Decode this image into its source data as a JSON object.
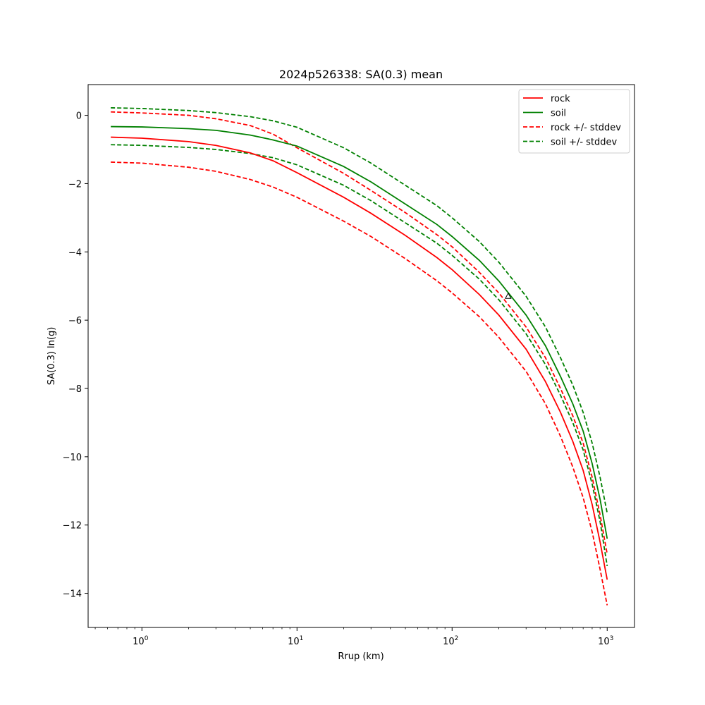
{
  "chart_data": {
    "type": "line",
    "title": "2024p526338: SA(0.3) mean",
    "xlabel": "Rrup (km)",
    "ylabel": "SA(0.3) ln(g)",
    "xscale": "log",
    "xlim": [
      0.45,
      1500
    ],
    "ylim": [
      -15,
      0.9
    ],
    "grid": false,
    "legend_position": "top-right",
    "x_ticks": [
      {
        "base": "10",
        "exp": "0",
        "value": 1
      },
      {
        "base": "10",
        "exp": "1",
        "value": 10
      },
      {
        "base": "10",
        "exp": "2",
        "value": 100
      },
      {
        "base": "10",
        "exp": "3",
        "value": 1000
      }
    ],
    "y_ticks": [
      {
        "label": "0",
        "value": 0
      },
      {
        "label": "−2",
        "value": -2
      },
      {
        "label": "−4",
        "value": -4
      },
      {
        "label": "−6",
        "value": -6
      },
      {
        "label": "−8",
        "value": -8
      },
      {
        "label": "−10",
        "value": -10
      },
      {
        "label": "−12",
        "value": -12
      },
      {
        "label": "−14",
        "value": -14
      }
    ],
    "x": [
      0.63,
      1,
      2,
      3,
      5,
      7,
      10,
      20,
      30,
      50,
      80,
      100,
      150,
      200,
      300,
      400,
      500,
      600,
      700,
      800,
      900,
      1000
    ],
    "series": [
      {
        "name": "soil +/- stddev",
        "color": "#008000",
        "dash": true,
        "values": [
          0.22,
          0.2,
          0.14,
          0.08,
          -0.04,
          -0.16,
          -0.35,
          -0.95,
          -1.4,
          -2.05,
          -2.65,
          -3.0,
          -3.7,
          -4.3,
          -5.3,
          -6.2,
          -7.1,
          -7.9,
          -8.7,
          -9.6,
          -10.6,
          -11.65
        ]
      },
      {
        "name": "soil +/- stddev",
        "color": "#008000",
        "dash": true,
        "values": [
          -0.86,
          -0.88,
          -0.94,
          -1.0,
          -1.12,
          -1.24,
          -1.45,
          -2.05,
          -2.5,
          -3.15,
          -3.75,
          -4.1,
          -4.8,
          -5.4,
          -6.4,
          -7.3,
          -8.2,
          -9.0,
          -9.8,
          -10.8,
          -11.9,
          -13.2
        ]
      },
      {
        "name": "rock +/- stddev",
        "color": "#ff0000",
        "dash": true,
        "values": [
          0.1,
          0.07,
          0.0,
          -0.1,
          -0.3,
          -0.55,
          -0.95,
          -1.7,
          -2.2,
          -2.85,
          -3.5,
          -3.85,
          -4.6,
          -5.2,
          -6.2,
          -7.1,
          -8.0,
          -8.8,
          -9.6,
          -10.6,
          -11.7,
          -12.85
        ]
      },
      {
        "name": "rock +/- stddev",
        "color": "#ff0000",
        "dash": true,
        "values": [
          -1.37,
          -1.4,
          -1.52,
          -1.64,
          -1.88,
          -2.1,
          -2.4,
          -3.1,
          -3.55,
          -4.2,
          -4.85,
          -5.2,
          -5.9,
          -6.5,
          -7.5,
          -8.45,
          -9.4,
          -10.3,
          -11.2,
          -12.2,
          -13.3,
          -14.35
        ]
      },
      {
        "name": "soil",
        "color": "#008000",
        "dash": false,
        "values": [
          -0.33,
          -0.34,
          -0.39,
          -0.44,
          -0.58,
          -0.72,
          -0.9,
          -1.5,
          -1.95,
          -2.6,
          -3.2,
          -3.55,
          -4.25,
          -4.85,
          -5.85,
          -6.75,
          -7.65,
          -8.45,
          -9.25,
          -10.2,
          -11.25,
          -12.4
        ]
      },
      {
        "name": "rock",
        "color": "#ff0000",
        "dash": false,
        "values": [
          -0.64,
          -0.67,
          -0.77,
          -0.88,
          -1.1,
          -1.33,
          -1.68,
          -2.4,
          -2.87,
          -3.52,
          -4.17,
          -4.52,
          -5.25,
          -5.85,
          -6.85,
          -7.8,
          -8.7,
          -9.55,
          -10.4,
          -11.4,
          -12.5,
          -13.6
        ]
      }
    ],
    "marker": {
      "symbol": "triangle",
      "x": 230,
      "y": -5.3
    },
    "legend": [
      {
        "label": "rock",
        "color": "#ff0000",
        "dash": false
      },
      {
        "label": "soil",
        "color": "#008000",
        "dash": false
      },
      {
        "label": "rock +/- stddev",
        "color": "#ff0000",
        "dash": true
      },
      {
        "label": "soil +/- stddev",
        "color": "#008000",
        "dash": true
      }
    ]
  }
}
